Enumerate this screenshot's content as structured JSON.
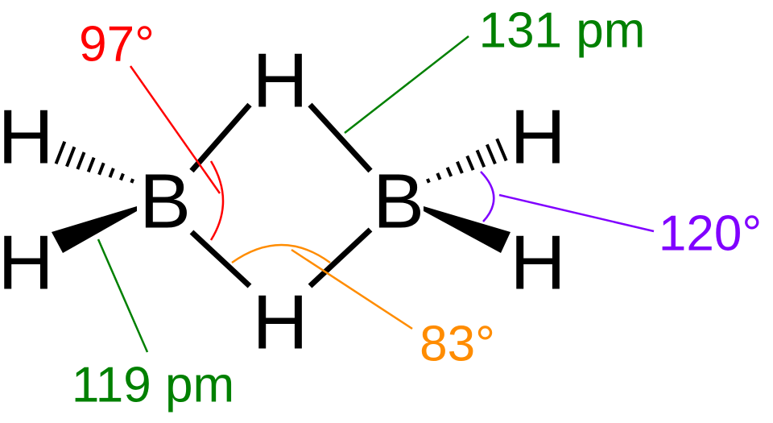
{
  "atoms": [
    {
      "label": "H"
    },
    {
      "label": "H"
    },
    {
      "label": "B"
    },
    {
      "label": "H"
    },
    {
      "label": "H"
    },
    {
      "label": "B"
    },
    {
      "label": "H"
    },
    {
      "label": "H"
    }
  ],
  "annotations": [
    {
      "label": "97°",
      "color": "#ff0000"
    },
    {
      "label": "131 pm",
      "color": "#008000"
    },
    {
      "label": "120°",
      "color": "#8000ff"
    },
    {
      "label": "83°",
      "color": "#ff8c00"
    },
    {
      "label": "119 pm",
      "color": "#008000"
    }
  ]
}
